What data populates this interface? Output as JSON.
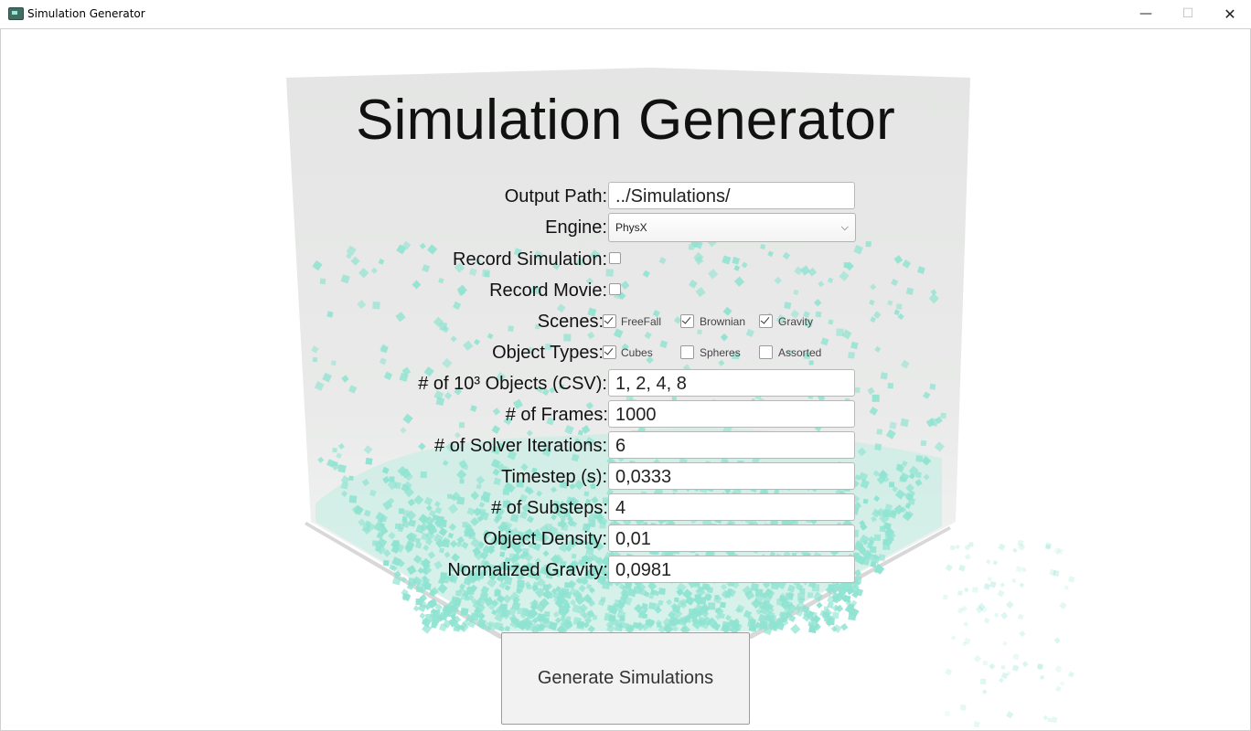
{
  "window": {
    "title": "Simulation Generator",
    "minimize": "—",
    "maximize": "☐",
    "close": "✕"
  },
  "app_title": "Simulation Generator",
  "form": {
    "output_path": {
      "label": "Output Path:",
      "value": "../Simulations/"
    },
    "engine": {
      "label": "Engine:",
      "value": "PhysX"
    },
    "record_simulation": {
      "label": "Record Simulation:",
      "checked": false
    },
    "record_movie": {
      "label": "Record Movie:",
      "checked": false
    },
    "scenes": {
      "label": "Scenes:",
      "options": [
        {
          "label": "FreeFall",
          "checked": true
        },
        {
          "label": "Brownian",
          "checked": true
        },
        {
          "label": "Gravity",
          "checked": true
        }
      ]
    },
    "object_types": {
      "label": "Object Types:",
      "options": [
        {
          "label": "Cubes",
          "checked": true
        },
        {
          "label": "Spheres",
          "checked": false
        },
        {
          "label": "Assorted",
          "checked": false
        }
      ]
    },
    "objects": {
      "label": "# of 10³ Objects (CSV):",
      "value": "1, 2, 4, 8"
    },
    "frames": {
      "label": "# of Frames:",
      "value": "1000"
    },
    "solver_iterations": {
      "label": "# of Solver Iterations:",
      "value": "6"
    },
    "timestep": {
      "label": "Timestep (s):",
      "value": "0,0333"
    },
    "substeps": {
      "label": "# of Substeps:",
      "value": "4"
    },
    "object_density": {
      "label": "Object Density:",
      "value": "0,01"
    },
    "normalized_gravity": {
      "label": "Normalized Gravity:",
      "value": "0,0981"
    }
  },
  "generate_button": "Generate Simulations",
  "colors": {
    "particle": "#8fe3d1",
    "panel": "#e6e7e6"
  }
}
